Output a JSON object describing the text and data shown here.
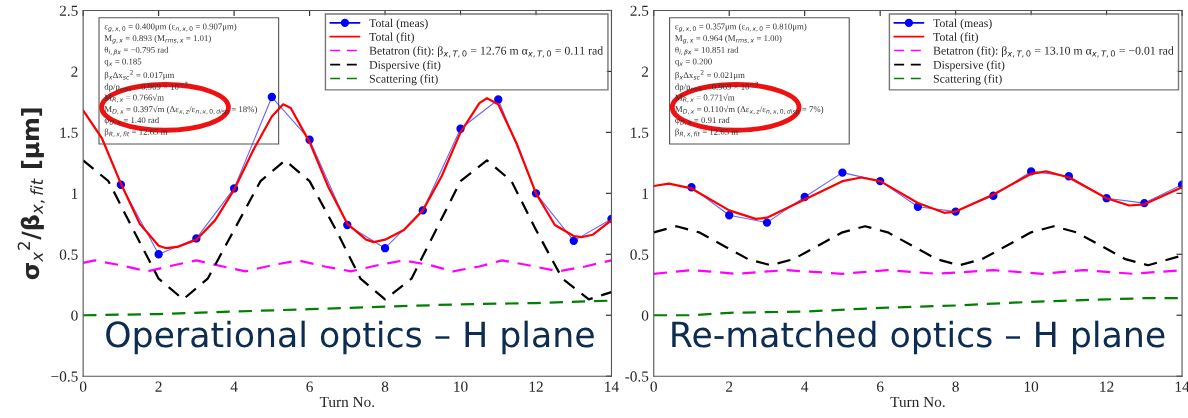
{
  "chart_data": [
    {
      "type": "line",
      "title": "Operational optics – H plane",
      "xlabel": "Turn No.",
      "ylabel": "σ$_{x}$$^{2}$/β$_{x,fit}$ [μm]",
      "xlim": [
        0,
        14
      ],
      "xticks": [
        0,
        2,
        4,
        6,
        8,
        10,
        12,
        14
      ],
      "ylim": [
        -0.5,
        2.5
      ],
      "yticks": [
        {
          "value": -0.5,
          "label": "−0.5"
        },
        0,
        0.5,
        1,
        1.5,
        2,
        2.5
      ],
      "grid": false,
      "legend": "top right",
      "annotations": [
        "ε$_{g,x,0}$ = 0.400μm (ε$_{n,x,0}$ = 0.907μm)",
        "M$_{g,x}$ = 0.893 (M$_{rms,x}$ = 1.01)",
        "θ$_{i,βx}$ = −0.795 rad",
        "q$_{x}$ = 0.185",
        "β$_{x}$Δx$_{sc}$$^{2}$ = 0.017μm",
        "dp/p$_{rms}$ = 0.969 × 10$^{−3}$",
        "M$_{R,x}$ = 0.766√m",
        "M$_{D,x}$ = 0.397√m (Δε$_{x,z}$/ε$_{n,x,0,disp}$ = 18%)",
        "φ$_{D,x}$ = 1.40 rad",
        "β$_{R,x,fit}$ = 12.65 m"
      ],
      "series": [
        {
          "name": "Total (meas)",
          "color": "#0000ff",
          "marker": "circle",
          "line_style": "solid",
          "x": [
            1,
            2,
            3,
            4,
            5,
            6,
            7,
            8,
            9,
            10,
            11,
            12,
            13,
            14
          ],
          "values": [
            1.07,
            0.5,
            0.63,
            1.04,
            1.79,
            1.44,
            0.74,
            0.55,
            0.86,
            1.53,
            1.77,
            1.0,
            0.61,
            0.79
          ]
        },
        {
          "name": "Total (fit)",
          "color": "#ff0000",
          "marker": "none",
          "line_style": "solid",
          "x": [
            0,
            0.5,
            1,
            1.5,
            2,
            2.2,
            2.5,
            3,
            3.5,
            4,
            4.5,
            5,
            5.3,
            5.5,
            6,
            6.5,
            7,
            7.5,
            7.7,
            8,
            8.5,
            9,
            9.5,
            10,
            10.5,
            10.7,
            11,
            11.5,
            12,
            12.5,
            13,
            13.2,
            13.5,
            14
          ],
          "values": [
            1.68,
            1.45,
            1.08,
            0.75,
            0.57,
            0.55,
            0.56,
            0.62,
            0.78,
            1.03,
            1.35,
            1.63,
            1.73,
            1.7,
            1.42,
            1.05,
            0.75,
            0.62,
            0.6,
            0.62,
            0.7,
            0.86,
            1.14,
            1.5,
            1.74,
            1.78,
            1.73,
            1.4,
            1.0,
            0.74,
            0.65,
            0.64,
            0.66,
            0.78
          ]
        },
        {
          "name": "Betatron (fit): β$_{x,T,0}$ = 12.76 m α$_{x,T,0}$ = 0.11 rad",
          "color": "#ff00ff",
          "marker": "none",
          "line_style": "dashed",
          "x": [
            0,
            0.3,
            1,
            1.7,
            2.4,
            3,
            3.7,
            4.3,
            5,
            5.7,
            6.4,
            7.1,
            7.8,
            8.5,
            9.2,
            9.8,
            10.5,
            11.1,
            11.8,
            12.6,
            13.3,
            14
          ],
          "values": [
            0.43,
            0.45,
            0.41,
            0.36,
            0.41,
            0.45,
            0.4,
            0.36,
            0.41,
            0.45,
            0.4,
            0.36,
            0.41,
            0.45,
            0.41,
            0.36,
            0.4,
            0.45,
            0.41,
            0.36,
            0.4,
            0.45
          ]
        },
        {
          "name": "Dispersive (fit)",
          "color": "#000000",
          "marker": "none",
          "line_style": "dashed",
          "x": [
            0,
            0.67,
            1.33,
            2,
            2.65,
            3.3,
            4,
            4.7,
            5.35,
            6,
            6.7,
            7.35,
            8,
            8.7,
            9.35,
            10,
            10.7,
            11.35,
            12,
            12.7,
            13.4,
            14
          ],
          "values": [
            1.27,
            1.1,
            0.7,
            0.3,
            0.13,
            0.3,
            0.7,
            1.1,
            1.27,
            1.1,
            0.7,
            0.3,
            0.13,
            0.3,
            0.7,
            1.1,
            1.27,
            1.1,
            0.7,
            0.3,
            0.13,
            0.19
          ]
        },
        {
          "name": "Scattering (fit)",
          "color": "#008000",
          "marker": "none",
          "line_style": "dashed",
          "x": [
            0,
            2,
            4,
            6,
            8,
            10,
            12,
            14
          ],
          "values": [
            0,
            0.01,
            0.03,
            0.05,
            0.07,
            0.09,
            0.1,
            0.12
          ]
        }
      ]
    },
    {
      "type": "line",
      "title": "Re-matched optics – H plane",
      "xlabel": "Turn No.",
      "xlim": [
        0,
        14
      ],
      "xticks": [
        0,
        2,
        4,
        6,
        8,
        10,
        12,
        14
      ],
      "ylim": [
        -0.5,
        2.5
      ],
      "yticks": [
        {
          "value": -0.5,
          "label": "-0.5"
        },
        0,
        0.5,
        1,
        1.5,
        2,
        2.5
      ],
      "grid": false,
      "legend": "top right",
      "annotations": [
        "ε$_{g,x,0}$ = 0.357μm (ε$_{n,x,0}$ = 0.810μm)",
        "M$_{g,x}$ = 0.964 (M$_{rms,x}$ = 1.00)",
        "θ$_{i,βx}$ = 10.851 rad",
        "q$_{x}$ = 0.200",
        "β$_{x}$Δx$_{sc}$$^{2}$ = 0.021μm",
        "dp/p$_{rms}$ = 0.969 × 10$^{−3}$",
        "M$_{R,x}$ = 0.771√m",
        "M$_{D,x}$ = 0.110√m (Δε$_{x,z}$/ε$_{n,x,0,disp}$ = 7%)",
        "φ$_{D,x}$ = 0.91 rad",
        "β$_{R,x,fit}$ = 12.65 m"
      ],
      "series": [
        {
          "name": "Total (meas)",
          "color": "#0000ff",
          "marker": "circle",
          "line_style": "solid",
          "x": [
            1,
            2,
            3,
            4,
            5,
            6,
            7,
            8,
            9,
            10,
            11,
            12,
            13,
            14
          ],
          "values": [
            1.05,
            0.82,
            0.76,
            0.97,
            1.17,
            1.1,
            0.89,
            0.85,
            0.98,
            1.18,
            1.14,
            0.96,
            0.92,
            1.07
          ]
        },
        {
          "name": "Total (fit)",
          "color": "#ff0000",
          "marker": "none",
          "line_style": "solid",
          "x": [
            0,
            0.4,
            1,
            2,
            2.7,
            3,
            4,
            5,
            5.5,
            6,
            7,
            7.7,
            8,
            9,
            10,
            10.4,
            11,
            12,
            12.6,
            13,
            14
          ],
          "values": [
            1.06,
            1.08,
            1.04,
            0.86,
            0.79,
            0.8,
            0.95,
            1.1,
            1.13,
            1.1,
            0.92,
            0.84,
            0.85,
            0.99,
            1.16,
            1.18,
            1.13,
            0.96,
            0.9,
            0.91,
            1.05
          ]
        },
        {
          "name": "Betatron (fit): β$_{x,T,0}$ = 13.10 m α$_{x,T,0}$ = −0.01 rad",
          "color": "#ff00ff",
          "marker": "none",
          "line_style": "dashed",
          "x": [
            0,
            1,
            2.2,
            3.5,
            5,
            6.2,
            7.5,
            9,
            10.3,
            11.4,
            12.7,
            14
          ],
          "values": [
            0.34,
            0.37,
            0.34,
            0.37,
            0.34,
            0.37,
            0.34,
            0.37,
            0.34,
            0.37,
            0.34,
            0.37
          ]
        },
        {
          "name": "Dispersive (fit)",
          "color": "#000000",
          "marker": "none",
          "line_style": "dashed",
          "x": [
            0,
            0.6,
            1.2,
            1.85,
            2.5,
            3.1,
            3.7,
            4.35,
            5,
            5.6,
            6.2,
            6.85,
            7.5,
            8.1,
            8.7,
            9.35,
            10,
            10.6,
            11.2,
            11.85,
            12.5,
            13.1,
            14
          ],
          "values": [
            0.68,
            0.73,
            0.68,
            0.57,
            0.46,
            0.41,
            0.46,
            0.57,
            0.68,
            0.73,
            0.68,
            0.57,
            0.46,
            0.41,
            0.46,
            0.57,
            0.68,
            0.73,
            0.68,
            0.57,
            0.46,
            0.41,
            0.49
          ]
        },
        {
          "name": "Scattering (fit)",
          "color": "#008000",
          "marker": "none",
          "line_style": "dashed",
          "x": [
            0,
            1,
            2,
            4,
            6,
            8,
            10,
            12,
            13,
            14
          ],
          "values": [
            0,
            0,
            0.02,
            0.03,
            0.06,
            0.08,
            0.11,
            0.13,
            0.14,
            0.14
          ]
        }
      ]
    }
  ]
}
